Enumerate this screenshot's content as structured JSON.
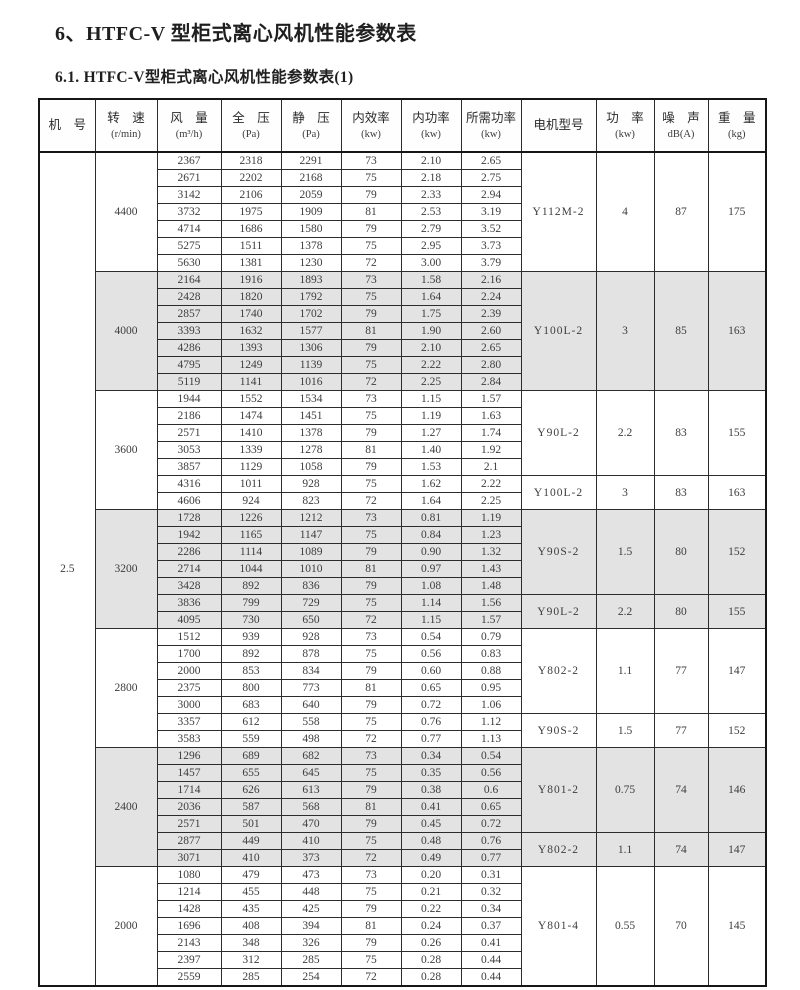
{
  "page": {
    "title": "6、HTFC-V 型柜式离心风机性能参数表",
    "subtitle": "6.1. HTFC-V型柜式离心风机性能参数表(1)"
  },
  "table": {
    "headers": [
      {
        "line1": "机　号",
        "line2": ""
      },
      {
        "line1": "转　速",
        "line2": "(r/min)"
      },
      {
        "line1": "风　量",
        "line2": "(m³/h)"
      },
      {
        "line1": "全　压",
        "line2": "(Pa)"
      },
      {
        "line1": "静　压",
        "line2": "(Pa)"
      },
      {
        "line1": "内效率",
        "line2": "(kw)"
      },
      {
        "line1": "内功率",
        "line2": "(kw)"
      },
      {
        "line1": "所需功率",
        "line2": "(kw)"
      },
      {
        "line1": "电机型号",
        "line2": ""
      },
      {
        "line1": "功　率",
        "line2": "(kw)"
      },
      {
        "line1": "噪　声",
        "line2": "dB(A)"
      },
      {
        "line1": "重　量",
        "line2": "(kg)"
      }
    ],
    "machine_no": "2.5",
    "groups": [
      {
        "speed": "4400",
        "shaded": false,
        "rows": [
          [
            "2367",
            "2318",
            "2291",
            "73",
            "2.10",
            "2.65"
          ],
          [
            "2671",
            "2202",
            "2168",
            "75",
            "2.18",
            "2.75"
          ],
          [
            "3142",
            "2106",
            "2059",
            "79",
            "2.33",
            "2.94"
          ],
          [
            "3732",
            "1975",
            "1909",
            "81",
            "2.53",
            "3.19"
          ],
          [
            "4714",
            "1686",
            "1580",
            "79",
            "2.79",
            "3.52"
          ],
          [
            "5275",
            "1511",
            "1378",
            "75",
            "2.95",
            "3.73"
          ],
          [
            "5630",
            "1381",
            "1230",
            "72",
            "3.00",
            "3.79"
          ]
        ],
        "motors": [
          {
            "model": "Y112M-2",
            "power": "4",
            "noise": "87",
            "weight": "175",
            "span": 7
          }
        ]
      },
      {
        "speed": "4000",
        "shaded": true,
        "rows": [
          [
            "2164",
            "1916",
            "1893",
            "73",
            "1.58",
            "2.16"
          ],
          [
            "2428",
            "1820",
            "1792",
            "75",
            "1.64",
            "2.24"
          ],
          [
            "2857",
            "1740",
            "1702",
            "79",
            "1.75",
            "2.39"
          ],
          [
            "3393",
            "1632",
            "1577",
            "81",
            "1.90",
            "2.60"
          ],
          [
            "4286",
            "1393",
            "1306",
            "79",
            "2.10",
            "2.65"
          ],
          [
            "4795",
            "1249",
            "1139",
            "75",
            "2.22",
            "2.80"
          ],
          [
            "5119",
            "1141",
            "1016",
            "72",
            "2.25",
            "2.84"
          ]
        ],
        "motors": [
          {
            "model": "Y100L-2",
            "power": "3",
            "noise": "85",
            "weight": "163",
            "span": 7
          }
        ]
      },
      {
        "speed": "3600",
        "shaded": false,
        "rows": [
          [
            "1944",
            "1552",
            "1534",
            "73",
            "1.15",
            "1.57"
          ],
          [
            "2186",
            "1474",
            "1451",
            "75",
            "1.19",
            "1.63"
          ],
          [
            "2571",
            "1410",
            "1378",
            "79",
            "1.27",
            "1.74"
          ],
          [
            "3053",
            "1339",
            "1278",
            "81",
            "1.40",
            "1.92"
          ],
          [
            "3857",
            "1129",
            "1058",
            "79",
            "1.53",
            "2.1"
          ],
          [
            "4316",
            "1011",
            "928",
            "75",
            "1.62",
            "2.22"
          ],
          [
            "4606",
            "924",
            "823",
            "72",
            "1.64",
            "2.25"
          ]
        ],
        "motors": [
          {
            "model": "Y90L-2",
            "power": "2.2",
            "noise": "83",
            "weight": "155",
            "span": 5
          },
          {
            "model": "Y100L-2",
            "power": "3",
            "noise": "83",
            "weight": "163",
            "span": 2
          }
        ]
      },
      {
        "speed": "3200",
        "shaded": true,
        "rows": [
          [
            "1728",
            "1226",
            "1212",
            "73",
            "0.81",
            "1.19"
          ],
          [
            "1942",
            "1165",
            "1147",
            "75",
            "0.84",
            "1.23"
          ],
          [
            "2286",
            "1114",
            "1089",
            "79",
            "0.90",
            "1.32"
          ],
          [
            "2714",
            "1044",
            "1010",
            "81",
            "0.97",
            "1.43"
          ],
          [
            "3428",
            "892",
            "836",
            "79",
            "1.08",
            "1.48"
          ],
          [
            "3836",
            "799",
            "729",
            "75",
            "1.14",
            "1.56"
          ],
          [
            "4095",
            "730",
            "650",
            "72",
            "1.15",
            "1.57"
          ]
        ],
        "motors": [
          {
            "model": "Y90S-2",
            "power": "1.5",
            "noise": "80",
            "weight": "152",
            "span": 5
          },
          {
            "model": "Y90L-2",
            "power": "2.2",
            "noise": "80",
            "weight": "155",
            "span": 2
          }
        ]
      },
      {
        "speed": "2800",
        "shaded": false,
        "rows": [
          [
            "1512",
            "939",
            "928",
            "73",
            "0.54",
            "0.79"
          ],
          [
            "1700",
            "892",
            "878",
            "75",
            "0.56",
            "0.83"
          ],
          [
            "2000",
            "853",
            "834",
            "79",
            "0.60",
            "0.88"
          ],
          [
            "2375",
            "800",
            "773",
            "81",
            "0.65",
            "0.95"
          ],
          [
            "3000",
            "683",
            "640",
            "79",
            "0.72",
            "1.06"
          ],
          [
            "3357",
            "612",
            "558",
            "75",
            "0.76",
            "1.12"
          ],
          [
            "3583",
            "559",
            "498",
            "72",
            "0.77",
            "1.13"
          ]
        ],
        "motors": [
          {
            "model": "Y802-2",
            "power": "1.1",
            "noise": "77",
            "weight": "147",
            "span": 5
          },
          {
            "model": "Y90S-2",
            "power": "1.5",
            "noise": "77",
            "weight": "152",
            "span": 2
          }
        ]
      },
      {
        "speed": "2400",
        "shaded": true,
        "rows": [
          [
            "1296",
            "689",
            "682",
            "73",
            "0.34",
            "0.54"
          ],
          [
            "1457",
            "655",
            "645",
            "75",
            "0.35",
            "0.56"
          ],
          [
            "1714",
            "626",
            "613",
            "79",
            "0.38",
            "0.6"
          ],
          [
            "2036",
            "587",
            "568",
            "81",
            "0.41",
            "0.65"
          ],
          [
            "2571",
            "501",
            "470",
            "79",
            "0.45",
            "0.72"
          ],
          [
            "2877",
            "449",
            "410",
            "75",
            "0.48",
            "0.76"
          ],
          [
            "3071",
            "410",
            "373",
            "72",
            "0.49",
            "0.77"
          ]
        ],
        "motors": [
          {
            "model": "Y801-2",
            "power": "0.75",
            "noise": "74",
            "weight": "146",
            "span": 5
          },
          {
            "model": "Y802-2",
            "power": "1.1",
            "noise": "74",
            "weight": "147",
            "span": 2
          }
        ]
      },
      {
        "speed": "2000",
        "shaded": false,
        "rows": [
          [
            "1080",
            "479",
            "473",
            "73",
            "0.20",
            "0.31"
          ],
          [
            "1214",
            "455",
            "448",
            "75",
            "0.21",
            "0.32"
          ],
          [
            "1428",
            "435",
            "425",
            "79",
            "0.22",
            "0.34"
          ],
          [
            "1696",
            "408",
            "394",
            "81",
            "0.24",
            "0.37"
          ],
          [
            "2143",
            "348",
            "326",
            "79",
            "0.26",
            "0.41"
          ],
          [
            "2397",
            "312",
            "285",
            "75",
            "0.28",
            "0.44"
          ],
          [
            "2559",
            "285",
            "254",
            "72",
            "0.28",
            "0.44"
          ]
        ],
        "motors": [
          {
            "model": "Y801-4",
            "power": "0.55",
            "noise": "70",
            "weight": "145",
            "span": 7
          }
        ]
      }
    ]
  }
}
